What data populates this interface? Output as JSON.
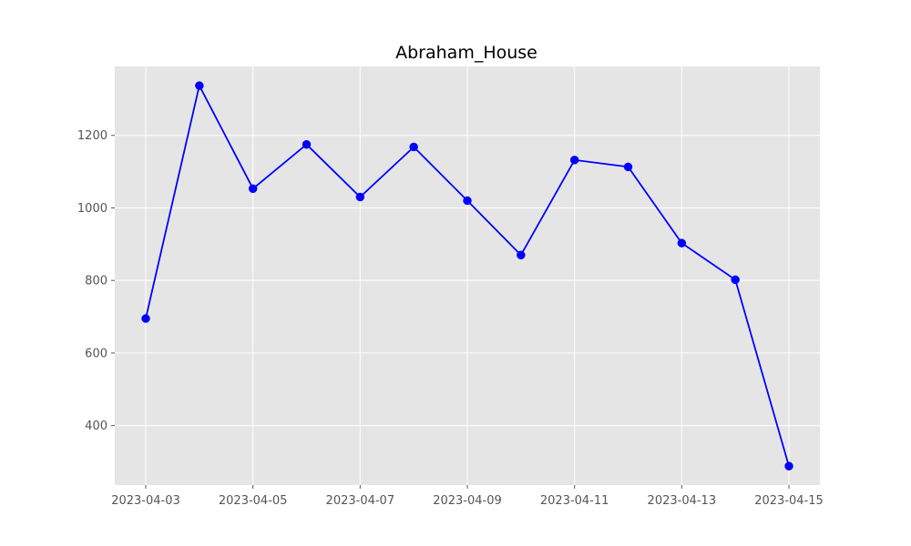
{
  "chart_data": {
    "type": "line",
    "title": "Abraham_House",
    "xlabel": "",
    "ylabel": "",
    "x": [
      "2023-04-03",
      "2023-04-04",
      "2023-04-05",
      "2023-04-06",
      "2023-04-07",
      "2023-04-08",
      "2023-04-09",
      "2023-04-10",
      "2023-04-11",
      "2023-04-12",
      "2023-04-13",
      "2023-04-14",
      "2023-04-15"
    ],
    "series": [
      {
        "values": [
          695,
          1337,
          1053,
          1175,
          1030,
          1168,
          1020,
          870,
          1132,
          1113,
          903,
          802,
          288
        ]
      }
    ],
    "x_ticks": [
      "2023-04-03",
      "2023-04-05",
      "2023-04-07",
      "2023-04-09",
      "2023-04-11",
      "2023-04-13",
      "2023-04-15"
    ],
    "y_ticks": [
      400,
      600,
      800,
      1000,
      1200
    ],
    "ylim": [
      236,
      1390
    ],
    "grid": true,
    "style": "ggplot",
    "colors": {
      "line": "#0000ff",
      "marker": "#0000ff",
      "plot_bg": "#e5e5e5",
      "grid": "#ffffff",
      "tick_text": "#555555"
    }
  }
}
